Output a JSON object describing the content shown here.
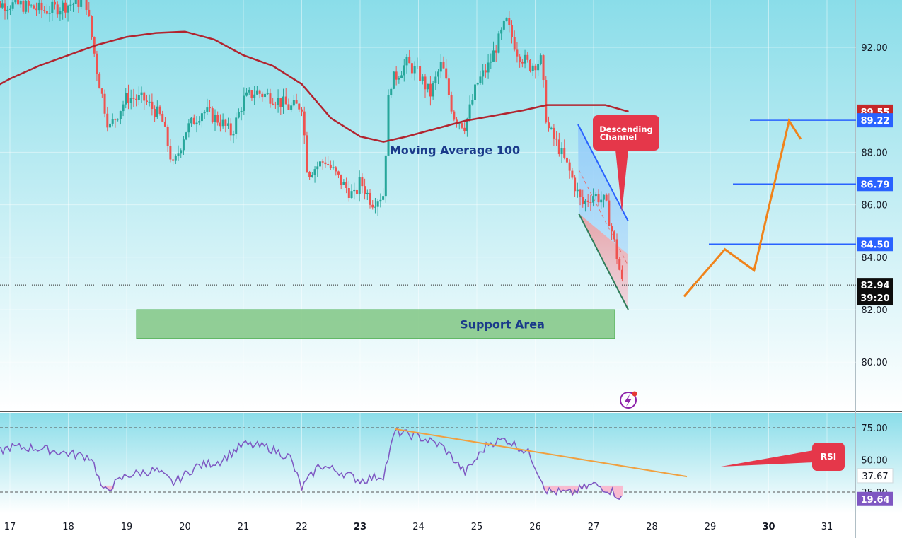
{
  "chart_data": [
    {
      "type": "candlestick",
      "x": [
        "17",
        "18",
        "19",
        "20",
        "21",
        "22",
        "23",
        "24",
        "25",
        "26",
        "27",
        "28",
        "29",
        "30",
        "31"
      ],
      "y_ticks": [
        "92.00",
        "88.00",
        "86.00",
        "84.00",
        "82.00",
        "80.00"
      ],
      "ylim": [
        78.2,
        94
      ],
      "current_price": "82.94",
      "countdown": "39:20",
      "price_markers": [
        {
          "label": "89.55",
          "value": 89.55,
          "color": "#c62828"
        },
        {
          "label": "89.22",
          "value": 89.22,
          "color": "#2962ff"
        },
        {
          "label": "86.79",
          "value": 86.79,
          "color": "#2962ff"
        },
        {
          "label": "84.50",
          "value": 84.5,
          "color": "#2962ff"
        }
      ],
      "ohlc_day_midpoints": [
        {
          "day": 16.6,
          "price": 93.7
        },
        {
          "day": 17.2,
          "price": 93.6
        },
        {
          "day": 17.6,
          "price": 93.4
        },
        {
          "day": 18.3,
          "price": 93.8
        },
        {
          "day": 18.5,
          "price": 91.0
        },
        {
          "day": 18.7,
          "price": 88.9
        },
        {
          "day": 19.0,
          "price": 90.1
        },
        {
          "day": 19.3,
          "price": 90.0
        },
        {
          "day": 19.6,
          "price": 89.3
        },
        {
          "day": 19.8,
          "price": 87.4
        },
        {
          "day": 20.0,
          "price": 88.8
        },
        {
          "day": 20.3,
          "price": 89.6
        },
        {
          "day": 20.6,
          "price": 89.2
        },
        {
          "day": 20.8,
          "price": 88.7
        },
        {
          "day": 21.0,
          "price": 90.0
        },
        {
          "day": 21.2,
          "price": 90.3
        },
        {
          "day": 21.5,
          "price": 90.1
        },
        {
          "day": 21.8,
          "price": 89.7
        },
        {
          "day": 22.0,
          "price": 89.8
        },
        {
          "day": 22.1,
          "price": 87.2
        },
        {
          "day": 22.4,
          "price": 87.7
        },
        {
          "day": 22.7,
          "price": 86.8
        },
        {
          "day": 22.9,
          "price": 86.3
        },
        {
          "day": 23.0,
          "price": 86.9
        },
        {
          "day": 23.2,
          "price": 86.1
        },
        {
          "day": 23.4,
          "price": 86.4
        },
        {
          "day": 23.5,
          "price": 90.6
        },
        {
          "day": 23.8,
          "price": 91.4
        },
        {
          "day": 24.0,
          "price": 91.0
        },
        {
          "day": 24.2,
          "price": 90.2
        },
        {
          "day": 24.4,
          "price": 91.4
        },
        {
          "day": 24.6,
          "price": 89.4
        },
        {
          "day": 24.8,
          "price": 89.0
        },
        {
          "day": 25.0,
          "price": 90.6
        },
        {
          "day": 25.2,
          "price": 91.3
        },
        {
          "day": 25.4,
          "price": 92.4
        },
        {
          "day": 25.5,
          "price": 93.0
        },
        {
          "day": 25.7,
          "price": 91.8
        },
        {
          "day": 25.9,
          "price": 91.3
        },
        {
          "day": 26.1,
          "price": 91.5
        },
        {
          "day": 26.2,
          "price": 89.0
        },
        {
          "day": 26.4,
          "price": 88.2
        },
        {
          "day": 26.6,
          "price": 87.2
        },
        {
          "day": 26.8,
          "price": 86.0
        },
        {
          "day": 27.0,
          "price": 86.4
        },
        {
          "day": 27.2,
          "price": 86.1
        },
        {
          "day": 27.35,
          "price": 84.6
        },
        {
          "day": 27.5,
          "price": 82.9
        }
      ],
      "moving_average": {
        "label": "Moving Average 100",
        "points": [
          {
            "day": 16.0,
            "price": 89.4
          },
          {
            "day": 16.5,
            "price": 90.2
          },
          {
            "day": 17.0,
            "price": 90.8
          },
          {
            "day": 17.5,
            "price": 91.3
          },
          {
            "day": 18.0,
            "price": 91.7
          },
          {
            "day": 18.5,
            "price": 92.1
          },
          {
            "day": 19.0,
            "price": 92.4
          },
          {
            "day": 19.5,
            "price": 92.55
          },
          {
            "day": 20.0,
            "price": 92.6
          },
          {
            "day": 20.5,
            "price": 92.3
          },
          {
            "day": 21.0,
            "price": 91.7
          },
          {
            "day": 21.5,
            "price": 91.3
          },
          {
            "day": 22.0,
            "price": 90.6
          },
          {
            "day": 22.5,
            "price": 89.3
          },
          {
            "day": 23.0,
            "price": 88.6
          },
          {
            "day": 23.4,
            "price": 88.4
          },
          {
            "day": 23.8,
            "price": 88.6
          },
          {
            "day": 24.3,
            "price": 88.9
          },
          {
            "day": 24.8,
            "price": 89.2
          },
          {
            "day": 25.3,
            "price": 89.4
          },
          {
            "day": 25.8,
            "price": 89.6
          },
          {
            "day": 26.2,
            "price": 89.8
          },
          {
            "day": 26.8,
            "price": 89.8
          },
          {
            "day": 27.2,
            "price": 89.8
          },
          {
            "day": 27.6,
            "price": 89.55
          }
        ]
      },
      "annotations": {
        "support_area_label": "Support Area",
        "support_area_range": [
          80.9,
          82.0
        ],
        "descending_channel_label": "Descending Channel",
        "projection_path": [
          {
            "day": 28.55,
            "price": 82.5
          },
          {
            "day": 29.25,
            "price": 84.3
          },
          {
            "day": 29.75,
            "price": 83.5
          },
          {
            "day": 30.35,
            "price": 89.2
          },
          {
            "day": 30.55,
            "price": 88.5
          }
        ]
      }
    },
    {
      "type": "line",
      "series_name": "RSI",
      "y_ticks": [
        "75.00",
        "50.00",
        "37.67",
        "25.00"
      ],
      "current_values": [
        {
          "label": "37.67",
          "value": 37.67
        },
        {
          "label": "19.64",
          "value": 19.64
        }
      ],
      "points": [
        {
          "day": 16.0,
          "value": 75
        },
        {
          "day": 16.3,
          "value": 57
        },
        {
          "day": 16.6,
          "value": 52
        },
        {
          "day": 17.0,
          "value": 60
        },
        {
          "day": 17.5,
          "value": 59
        },
        {
          "day": 18.0,
          "value": 55
        },
        {
          "day": 18.4,
          "value": 52
        },
        {
          "day": 18.6,
          "value": 25
        },
        {
          "day": 19.0,
          "value": 38
        },
        {
          "day": 19.5,
          "value": 42
        },
        {
          "day": 19.8,
          "value": 32
        },
        {
          "day": 20.2,
          "value": 45
        },
        {
          "day": 20.6,
          "value": 49
        },
        {
          "day": 21.0,
          "value": 62
        },
        {
          "day": 21.4,
          "value": 60
        },
        {
          "day": 21.8,
          "value": 52
        },
        {
          "day": 22.0,
          "value": 28
        },
        {
          "day": 22.3,
          "value": 46
        },
        {
          "day": 22.7,
          "value": 40
        },
        {
          "day": 23.0,
          "value": 34
        },
        {
          "day": 23.4,
          "value": 38
        },
        {
          "day": 23.6,
          "value": 72
        },
        {
          "day": 24.0,
          "value": 68
        },
        {
          "day": 24.4,
          "value": 61
        },
        {
          "day": 24.8,
          "value": 40
        },
        {
          "day": 25.2,
          "value": 63
        },
        {
          "day": 25.5,
          "value": 66
        },
        {
          "day": 25.9,
          "value": 55
        },
        {
          "day": 26.2,
          "value": 26
        },
        {
          "day": 26.6,
          "value": 24
        },
        {
          "day": 27.0,
          "value": 31
        },
        {
          "day": 27.3,
          "value": 26
        },
        {
          "day": 27.5,
          "value": 19.6
        }
      ],
      "trendline": [
        {
          "day": 23.6,
          "value": 74
        },
        {
          "day": 28.6,
          "value": 37
        }
      ],
      "callout_label": "RSI"
    }
  ],
  "colors": {
    "up": "#26a69a",
    "down": "#ef5350",
    "moving_average": "#b2242f",
    "blue_line": "#2962ff",
    "orange": "#f0831a",
    "support_fill": "#81c784",
    "callout_red": "#e5374a"
  }
}
